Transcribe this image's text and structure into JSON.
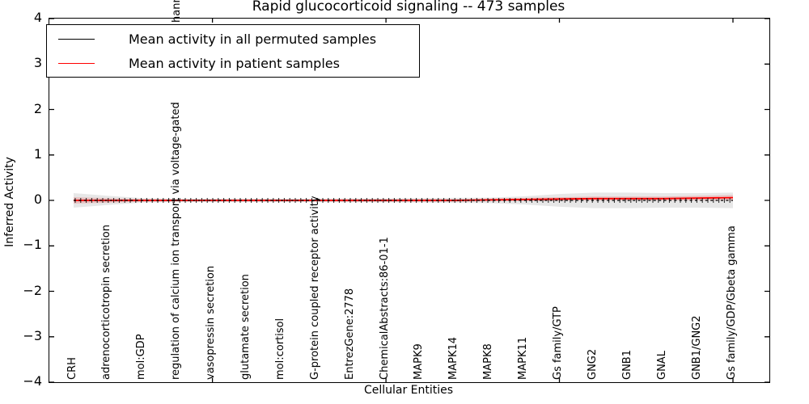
{
  "figure": {
    "kind": "matplotlib-style line plot with confidence bands"
  },
  "chart_data": {
    "type": "line",
    "title": "Rapid glucocorticoid signaling -- 473 samples",
    "xlabel": "Cellular Entities",
    "ylabel": "Inferred Activity",
    "ylim": [
      -4,
      4
    ],
    "yticks": [
      4,
      3,
      2,
      1,
      0,
      -1,
      -2,
      -3,
      -4
    ],
    "xticks_shown_at_category_numbers": [
      5,
      10,
      15,
      20
    ],
    "grid": false,
    "legend_position": "upper left",
    "categories": [
      "CRH",
      "adrenocorticotropin secretion",
      "mol:GDP",
      "regulation of calcium ion transport via voltage-gated",
      "vasopressin secretion",
      "glutamate secretion",
      "mol:cortisol",
      "G-protein coupled receptor activity",
      "EntrezGene:2778",
      "ChemicalAbstracts:86-01-1",
      "MAPK9",
      "MAPK14",
      "MAPK8",
      "MAPK11",
      "Gs family/GTP",
      "GNG2",
      "GNB1",
      "GNAL",
      "GNB1/GNG2",
      "Gs family/GDP/Gbeta gamma"
    ],
    "clipped_label_fragment_above_legend": "hann",
    "clipped_label_category_number": 4,
    "series": [
      {
        "name": "Mean activity in all permuted samples",
        "color": "#000000",
        "line_style": "dashed with sample tick caps",
        "values": [
          0,
          0,
          0,
          0,
          0,
          0,
          0,
          0,
          0,
          0,
          0,
          0,
          0,
          0,
          0,
          0,
          0,
          0,
          0,
          0
        ],
        "band_halfwidth": [
          0.16,
          0.1,
          0.05,
          0.04,
          0.04,
          0.04,
          0.04,
          0.04,
          0.045,
          0.045,
          0.05,
          0.055,
          0.06,
          0.09,
          0.14,
          0.17,
          0.17,
          0.16,
          0.16,
          0.17
        ],
        "band_color": "#c9c9c9"
      },
      {
        "name": "Mean activity in patient samples",
        "color": "#ff0000",
        "line_style": "solid",
        "values": [
          0,
          0,
          0,
          0,
          0,
          0,
          0,
          0,
          0,
          0,
          0,
          0,
          0.01,
          0.02,
          0.03,
          0.04,
          0.04,
          0.04,
          0.05,
          0.06
        ],
        "band_halfwidth": [
          0.07,
          0.05,
          0.03,
          0.025,
          0.025,
          0.025,
          0.025,
          0.025,
          0.03,
          0.03,
          0.03,
          0.03,
          0.03,
          0.035,
          0.04,
          0.045,
          0.045,
          0.045,
          0.05,
          0.055
        ],
        "band_color": "#e98f8f"
      }
    ]
  }
}
